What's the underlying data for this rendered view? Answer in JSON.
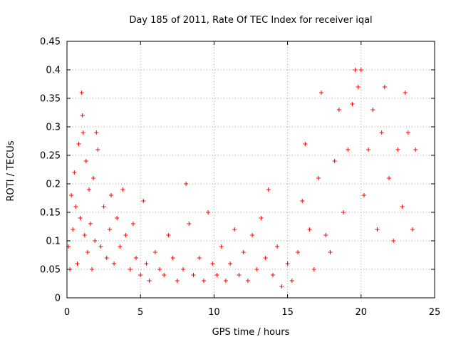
{
  "chart_data": {
    "type": "scatter",
    "title": "Day 185 of 2011, Rate Of TEC Index for receiver iqal",
    "xlabel": "GPS time / hours",
    "ylabel": "ROTI / TECUs",
    "xlim": [
      0,
      25
    ],
    "ylim": [
      0,
      0.45
    ],
    "xticks": [
      0,
      5,
      10,
      15,
      20,
      25
    ],
    "xtick_labels": [
      "0",
      "5",
      "10",
      "15",
      "20",
      "25"
    ],
    "yticks": [
      0,
      0.05,
      0.1,
      0.15,
      0.2,
      0.25,
      0.3,
      0.35,
      0.4,
      0.45
    ],
    "ytick_labels": [
      "0",
      "0.05",
      "0.1",
      "0.15",
      "0.2",
      "0.25",
      "0.3",
      "0.35",
      "0.4",
      "0.45"
    ],
    "grid": true,
    "marker": "+",
    "color": "#ff0000",
    "series": [
      {
        "points": [
          [
            0.1,
            0.09
          ],
          [
            0.2,
            0.05
          ],
          [
            0.3,
            0.18
          ],
          [
            0.4,
            0.12
          ],
          [
            0.5,
            0.22
          ],
          [
            0.6,
            0.16
          ],
          [
            0.7,
            0.06
          ],
          [
            0.8,
            0.27
          ],
          [
            0.9,
            0.14
          ],
          [
            1.0,
            0.36
          ],
          [
            1.05,
            0.32
          ],
          [
            1.1,
            0.29
          ],
          [
            1.2,
            0.11
          ],
          [
            1.3,
            0.24
          ],
          [
            1.4,
            0.08
          ],
          [
            1.5,
            0.19
          ],
          [
            1.6,
            0.13
          ],
          [
            1.7,
            0.05
          ],
          [
            1.8,
            0.21
          ],
          [
            1.9,
            0.1
          ],
          [
            2.0,
            0.29
          ],
          [
            2.1,
            0.26
          ],
          [
            2.3,
            0.09
          ],
          [
            2.5,
            0.16
          ],
          [
            2.7,
            0.07
          ],
          [
            2.9,
            0.12
          ],
          [
            3.0,
            0.18
          ],
          [
            3.2,
            0.06
          ],
          [
            3.4,
            0.14
          ],
          [
            3.6,
            0.09
          ],
          [
            3.8,
            0.19
          ],
          [
            4.0,
            0.11
          ],
          [
            4.3,
            0.05
          ],
          [
            4.5,
            0.13
          ],
          [
            4.7,
            0.07
          ],
          [
            5.0,
            0.04
          ],
          [
            5.2,
            0.17
          ],
          [
            5.4,
            0.06
          ],
          [
            5.6,
            0.03
          ],
          [
            6.0,
            0.08
          ],
          [
            6.3,
            0.05
          ],
          [
            6.6,
            0.04
          ],
          [
            6.9,
            0.11
          ],
          [
            7.2,
            0.07
          ],
          [
            7.5,
            0.03
          ],
          [
            7.9,
            0.05
          ],
          [
            8.1,
            0.2
          ],
          [
            8.3,
            0.13
          ],
          [
            8.6,
            0.04
          ],
          [
            9.0,
            0.07
          ],
          [
            9.3,
            0.03
          ],
          [
            9.6,
            0.15
          ],
          [
            9.9,
            0.06
          ],
          [
            10.2,
            0.04
          ],
          [
            10.5,
            0.09
          ],
          [
            10.8,
            0.03
          ],
          [
            11.1,
            0.06
          ],
          [
            11.4,
            0.12
          ],
          [
            11.7,
            0.04
          ],
          [
            12.0,
            0.08
          ],
          [
            12.3,
            0.03
          ],
          [
            12.6,
            0.11
          ],
          [
            12.9,
            0.05
          ],
          [
            13.2,
            0.14
          ],
          [
            13.5,
            0.07
          ],
          [
            13.7,
            0.19
          ],
          [
            14.0,
            0.04
          ],
          [
            14.3,
            0.09
          ],
          [
            14.6,
            0.02
          ],
          [
            15.0,
            0.06
          ],
          [
            15.3,
            0.03
          ],
          [
            15.7,
            0.08
          ],
          [
            16.0,
            0.17
          ],
          [
            16.2,
            0.27
          ],
          [
            16.5,
            0.12
          ],
          [
            16.8,
            0.05
          ],
          [
            17.1,
            0.21
          ],
          [
            17.3,
            0.36
          ],
          [
            17.6,
            0.11
          ],
          [
            17.9,
            0.08
          ],
          [
            18.2,
            0.24
          ],
          [
            18.5,
            0.33
          ],
          [
            18.8,
            0.15
          ],
          [
            19.1,
            0.26
          ],
          [
            19.4,
            0.34
          ],
          [
            19.6,
            0.4
          ],
          [
            19.8,
            0.37
          ],
          [
            20.0,
            0.4
          ],
          [
            20.2,
            0.18
          ],
          [
            20.5,
            0.26
          ],
          [
            20.8,
            0.33
          ],
          [
            21.1,
            0.12
          ],
          [
            21.4,
            0.29
          ],
          [
            21.6,
            0.37
          ],
          [
            21.9,
            0.21
          ],
          [
            22.2,
            0.1
          ],
          [
            22.5,
            0.26
          ],
          [
            22.8,
            0.16
          ],
          [
            23.0,
            0.36
          ],
          [
            23.2,
            0.29
          ],
          [
            23.5,
            0.12
          ],
          [
            23.7,
            0.26
          ]
        ]
      }
    ]
  }
}
